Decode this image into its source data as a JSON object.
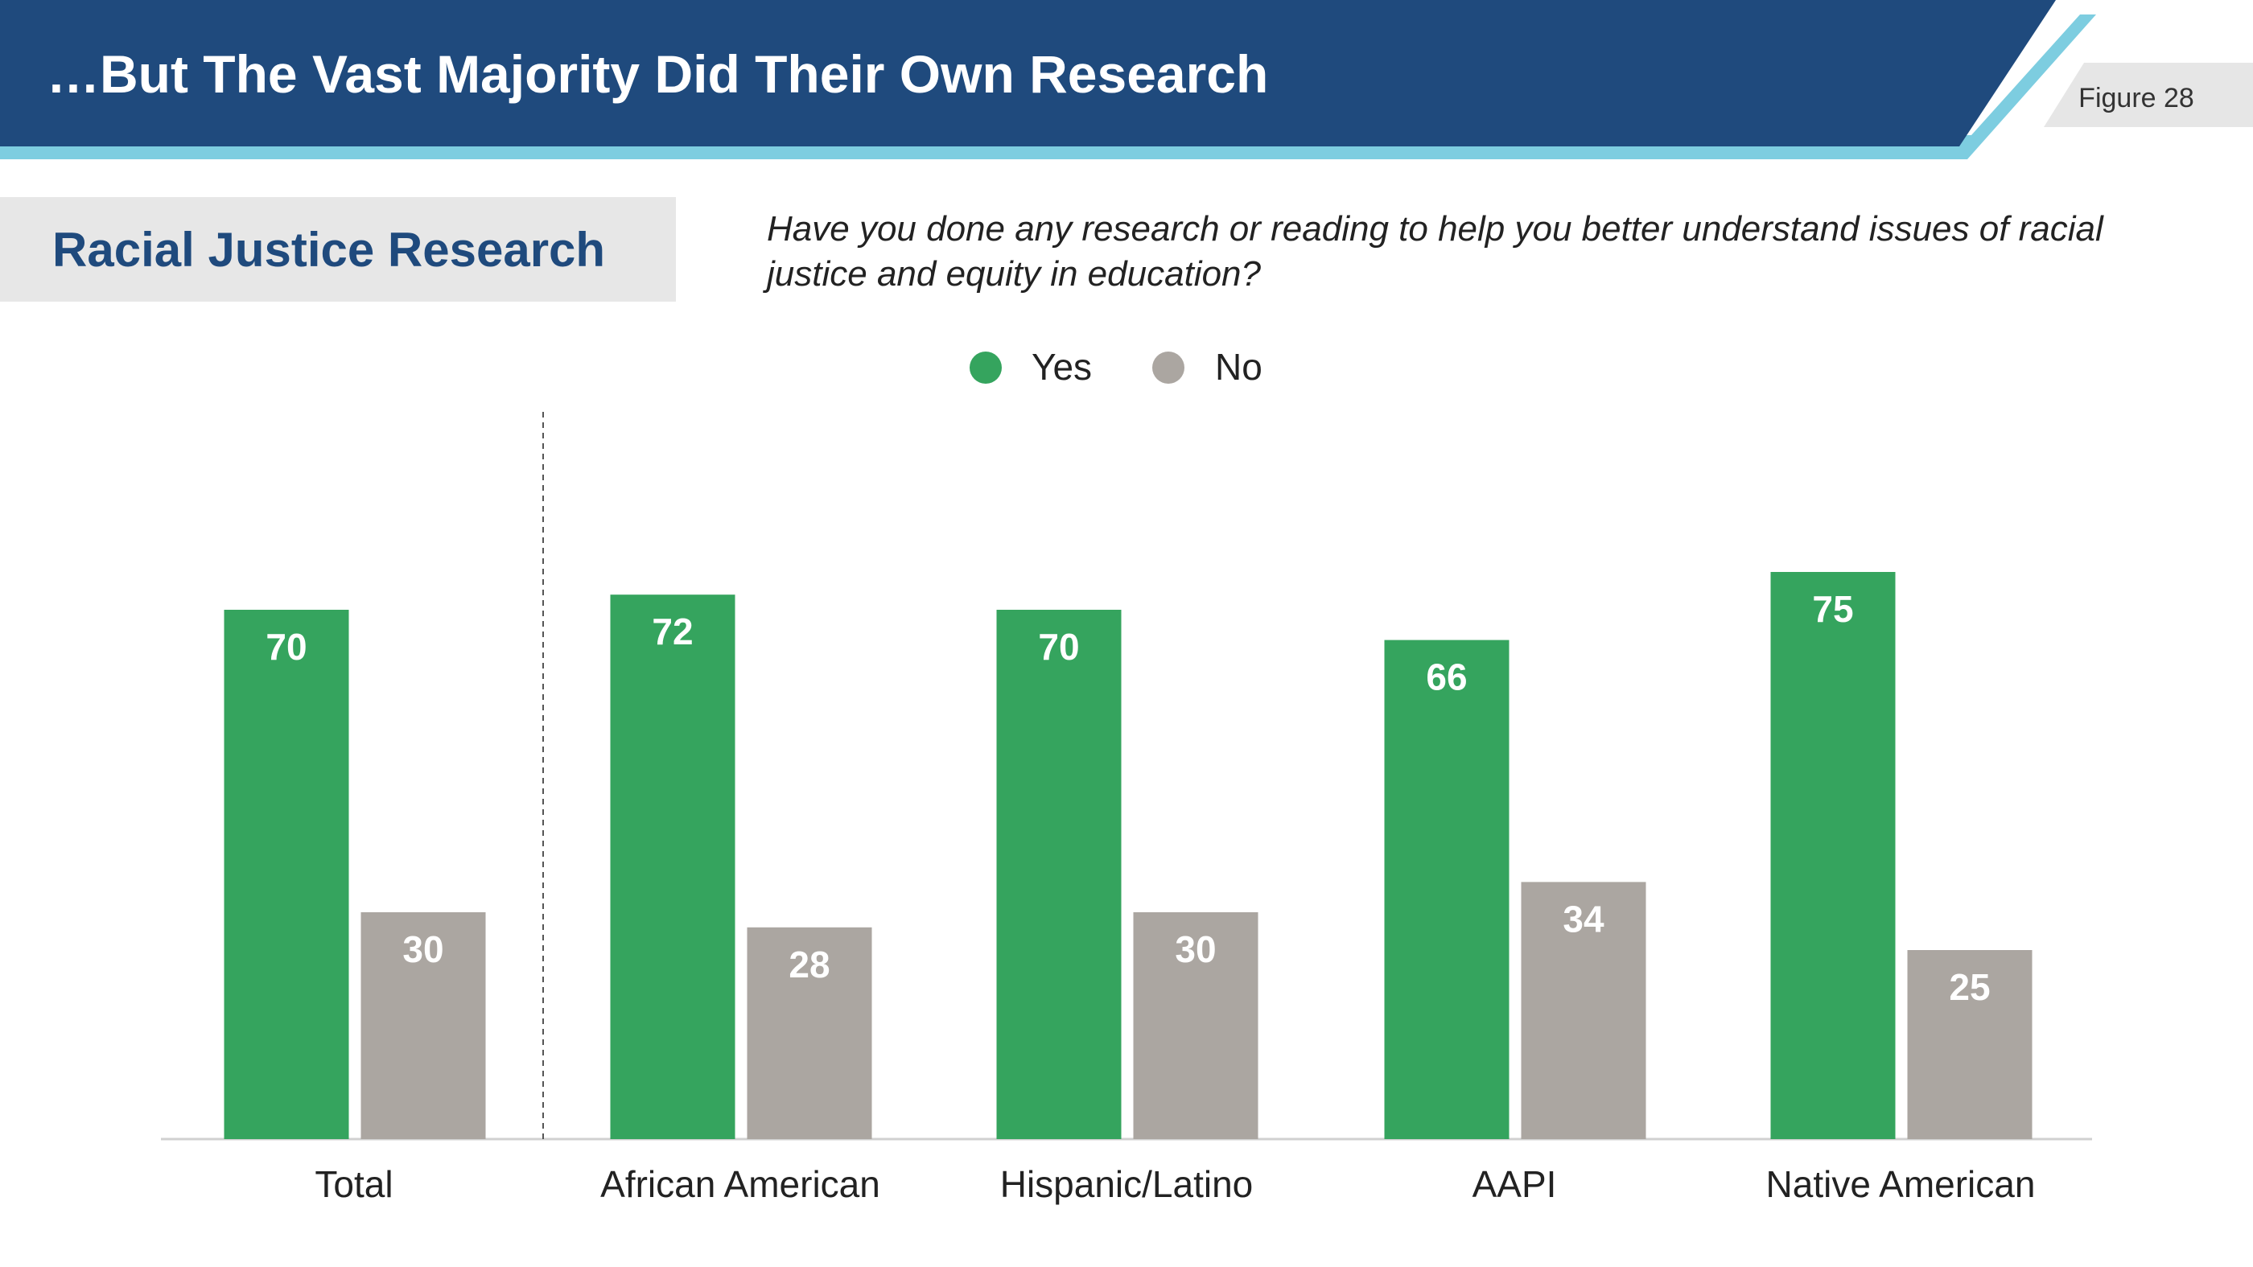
{
  "header": {
    "title": "…But The Vast Majority Did Their Own Research",
    "figure_label": "Figure 28"
  },
  "section": {
    "title": "Racial Justice Research",
    "question": "Have you done any research or reading to help you better understand issues of racial justice and equity in education?"
  },
  "colors": {
    "banner": "#1f4a7d",
    "banner_accent": "#7dcde0",
    "yes": "#35a45e",
    "no": "#aba6a1"
  },
  "chart_data": {
    "type": "bar",
    "categories": [
      "Total",
      "African American",
      "Hispanic/Latino",
      "AAPI",
      "Native American"
    ],
    "series": [
      {
        "name": "Yes",
        "values": [
          70,
          72,
          70,
          66,
          75
        ]
      },
      {
        "name": "No",
        "values": [
          30,
          28,
          30,
          34,
          25
        ]
      }
    ],
    "ylim": [
      0,
      100
    ],
    "legend": "top-center",
    "grid": false,
    "divider_after": "Total"
  }
}
